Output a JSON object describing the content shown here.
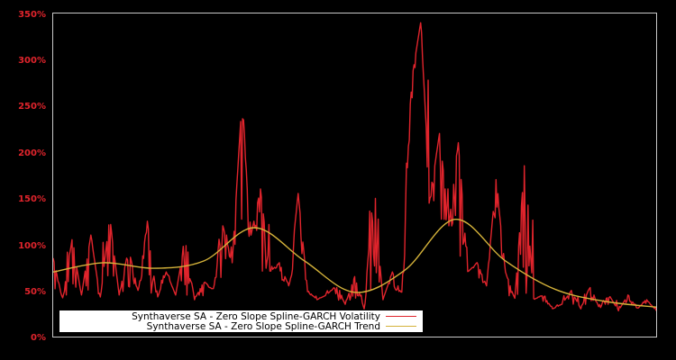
{
  "chart_data": {
    "type": "line",
    "title": "",
    "xlabel": "",
    "ylabel": "",
    "ylim": [
      0,
      350
    ],
    "y_ticks": [
      "0%",
      "50%",
      "100%",
      "150%",
      "200%",
      "250%",
      "300%",
      "350%"
    ],
    "y_tick_values": [
      0,
      50,
      100,
      150,
      200,
      250,
      300,
      350
    ],
    "grid": false,
    "legend_position": "lower-left",
    "background": "#000000",
    "axis_color": "#c8c8c8",
    "tick_color": "#e0242c",
    "x": [
      0,
      5,
      10,
      15,
      20,
      25,
      30,
      35,
      40,
      45,
      50,
      55,
      60,
      65,
      70,
      75,
      80,
      85,
      90,
      95,
      100
    ],
    "series": [
      {
        "name": "Synthaverse SA - Zero Slope Spline-GARCH Volatility",
        "color": "#e0242c",
        "values_sampled_percent": [
          85,
          40,
          105,
          45,
          110,
          40,
          130,
          45,
          95,
          50,
          125,
          40,
          70,
          45,
          105,
          40,
          60,
          50,
          120,
          80,
          250,
          110,
          160,
          70,
          80,
          55,
          155,
          50,
          40,
          45,
          55,
          35,
          65,
          30,
          160,
          40,
          70,
          45,
          275,
          340,
          150,
          220,
          120,
          210,
          70,
          80,
          55,
          170,
          70,
          40,
          185,
          40,
          45,
          30,
          35,
          50,
          30,
          55,
          30,
          45,
          28,
          45,
          30,
          40,
          28
        ]
      },
      {
        "name": "Synthaverse SA - Zero Slope Spline-GARCH Trend",
        "color": "#d4b23a",
        "values_sampled_percent": [
          70,
          80,
          74,
          82,
          118,
          82,
          48,
          72,
          127,
          82,
          51,
          38,
          32
        ]
      }
    ]
  },
  "legend": {
    "items": [
      {
        "label": "Synthaverse SA - Zero Slope Spline-GARCH Volatility",
        "color": "#e0242c"
      },
      {
        "label": "Synthaverse SA - Zero Slope Spline-GARCH Trend",
        "color": "#d4b23a"
      }
    ]
  }
}
